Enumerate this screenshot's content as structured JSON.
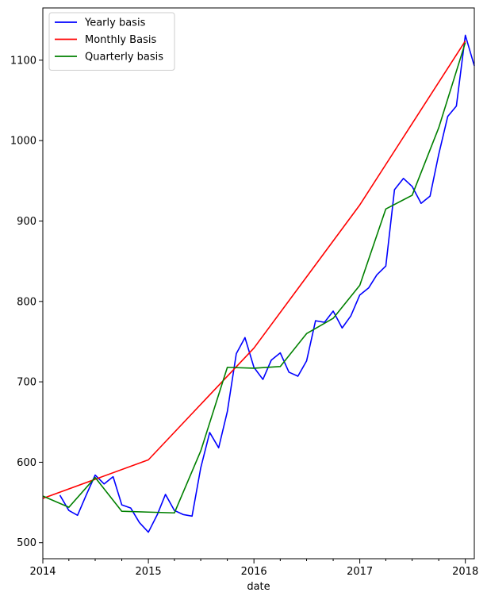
{
  "chart_data": {
    "type": "line",
    "title": "",
    "xlabel": "date",
    "ylabel": "",
    "xlim": [
      "2014-01-01",
      "2018-02-01"
    ],
    "ylim": [
      480,
      1165
    ],
    "x_ticks": [
      {
        "date": "2014-01-01",
        "label": "2014"
      },
      {
        "date": "2015-01-01",
        "label": "2015"
      },
      {
        "date": "2016-01-01",
        "label": "2016"
      },
      {
        "date": "2017-01-01",
        "label": "2017"
      },
      {
        "date": "2018-01-01",
        "label": "2018"
      }
    ],
    "x_minor_ticks": [
      "2014-04-01",
      "2014-07-01",
      "2014-10-01",
      "2015-04-01",
      "2015-07-01",
      "2015-10-01",
      "2016-04-01",
      "2016-07-01",
      "2016-10-01",
      "2017-04-01",
      "2017-07-01",
      "2017-10-01"
    ],
    "y_ticks": [
      500,
      600,
      700,
      800,
      900,
      1000,
      1100
    ],
    "legend_position": "top-left",
    "grid": false,
    "series": [
      {
        "name": "Yearly basis",
        "color": "#0000ff",
        "points": [
          [
            "2014-03-01",
            559
          ],
          [
            "2014-04-01",
            540
          ],
          [
            "2014-05-01",
            534
          ],
          [
            "2014-06-01",
            560
          ],
          [
            "2014-07-01",
            584
          ],
          [
            "2014-08-01",
            573
          ],
          [
            "2014-09-01",
            582
          ],
          [
            "2014-10-01",
            547
          ],
          [
            "2014-11-01",
            543
          ],
          [
            "2014-12-01",
            525
          ],
          [
            "2015-01-01",
            513
          ],
          [
            "2015-02-01",
            535
          ],
          [
            "2015-03-01",
            560
          ],
          [
            "2015-04-01",
            540
          ],
          [
            "2015-05-01",
            535
          ],
          [
            "2015-06-01",
            533
          ],
          [
            "2015-07-01",
            593
          ],
          [
            "2015-08-01",
            637
          ],
          [
            "2015-09-01",
            618
          ],
          [
            "2015-10-01",
            663
          ],
          [
            "2015-11-01",
            735
          ],
          [
            "2015-12-01",
            755
          ],
          [
            "2016-01-01",
            718
          ],
          [
            "2016-02-01",
            703
          ],
          [
            "2016-03-01",
            727
          ],
          [
            "2016-04-01",
            736
          ],
          [
            "2016-05-01",
            712
          ],
          [
            "2016-06-01",
            707
          ],
          [
            "2016-07-01",
            726
          ],
          [
            "2016-08-01",
            776
          ],
          [
            "2016-09-01",
            774
          ],
          [
            "2016-10-01",
            788
          ],
          [
            "2016-11-01",
            767
          ],
          [
            "2016-12-01",
            782
          ],
          [
            "2017-01-01",
            808
          ],
          [
            "2017-02-01",
            817
          ],
          [
            "2017-03-01",
            833
          ],
          [
            "2017-04-01",
            844
          ],
          [
            "2017-05-01",
            939
          ],
          [
            "2017-06-01",
            953
          ],
          [
            "2017-07-01",
            943
          ],
          [
            "2017-08-01",
            922
          ],
          [
            "2017-09-01",
            931
          ],
          [
            "2017-10-01",
            983
          ],
          [
            "2017-11-01",
            1030
          ],
          [
            "2017-12-01",
            1043
          ],
          [
            "2018-01-01",
            1131
          ],
          [
            "2018-02-01",
            1093
          ]
        ]
      },
      {
        "name": "Monthly Basis",
        "color": "#ff0000",
        "points": [
          [
            "2014-01-01",
            555
          ],
          [
            "2015-01-01",
            603
          ],
          [
            "2016-01-01",
            742
          ],
          [
            "2017-01-01",
            920
          ],
          [
            "2018-01-01",
            1124
          ]
        ]
      },
      {
        "name": "Quarterly basis",
        "color": "#008000",
        "points": [
          [
            "2014-01-01",
            558
          ],
          [
            "2014-04-01",
            544
          ],
          [
            "2014-07-01",
            581
          ],
          [
            "2014-10-01",
            539
          ],
          [
            "2015-01-01",
            538
          ],
          [
            "2015-04-01",
            537
          ],
          [
            "2015-07-01",
            614
          ],
          [
            "2015-10-01",
            718
          ],
          [
            "2016-01-01",
            717
          ],
          [
            "2016-04-01",
            719
          ],
          [
            "2016-07-01",
            760
          ],
          [
            "2016-10-01",
            779
          ],
          [
            "2017-01-01",
            820
          ],
          [
            "2017-04-01",
            915
          ],
          [
            "2017-07-01",
            932
          ],
          [
            "2017-10-01",
            1016
          ],
          [
            "2018-01-01",
            1122
          ]
        ]
      }
    ]
  }
}
